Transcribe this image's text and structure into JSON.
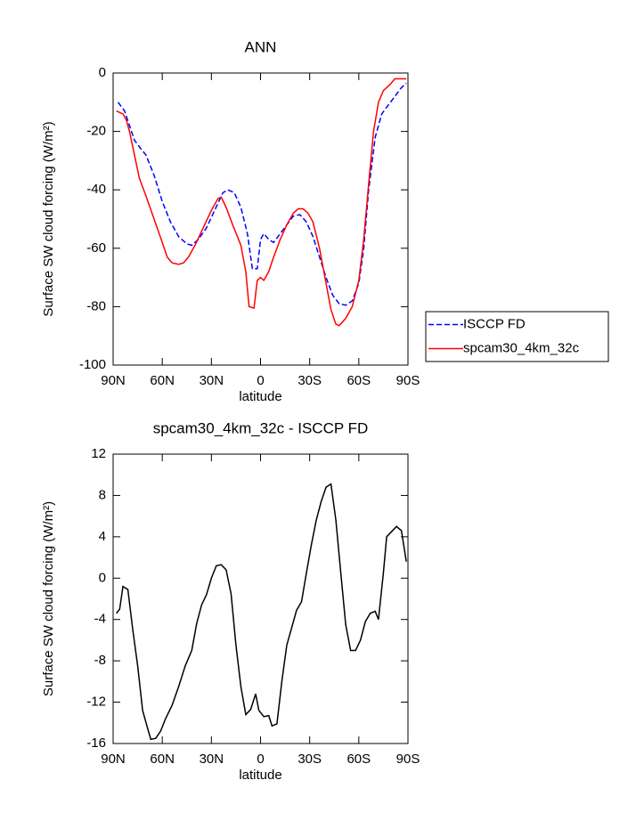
{
  "chart_data": [
    {
      "type": "line",
      "title": "ANN",
      "xlabel": "latitude",
      "ylabel": "Surface SW cloud forcing (W/m²)",
      "xlim": [
        90,
        -90
      ],
      "xticks": [
        {
          "value": 90,
          "label": "90N"
        },
        {
          "value": 60,
          "label": "60N"
        },
        {
          "value": 30,
          "label": "30N"
        },
        0,
        {
          "value": -30,
          "label": "30S"
        },
        {
          "value": -60,
          "label": "60S"
        },
        {
          "value": -90,
          "label": "90S"
        }
      ],
      "ylim": [
        -100,
        0
      ],
      "yticks": [
        0,
        -20,
        -40,
        -60,
        -80,
        -100
      ],
      "legend": "outside right",
      "series": [
        {
          "name": "ISCCP FD",
          "color": "#0000ff",
          "dash": true,
          "x": [
            87,
            83,
            80,
            77,
            73,
            70,
            65,
            60,
            55,
            50,
            45,
            42,
            38,
            33,
            28,
            23,
            20,
            16,
            12,
            8,
            5,
            2,
            0,
            -2,
            -5,
            -8,
            -12,
            -16,
            -20,
            -24,
            -28,
            -32,
            -36,
            -40,
            -44,
            -48,
            -52,
            -56,
            -60,
            -63,
            -66,
            -70,
            -74,
            -78,
            -82,
            -86,
            -89
          ],
          "values": [
            -10,
            -13,
            -18,
            -23,
            -26,
            -28,
            -35,
            -44,
            -51,
            -56,
            -58.5,
            -59,
            -57,
            -53,
            -47,
            -41,
            -40,
            -41,
            -46,
            -55,
            -67,
            -67,
            -57,
            -55,
            -57,
            -58,
            -55,
            -52,
            -49,
            -48.5,
            -51,
            -56,
            -63,
            -70,
            -76,
            -79,
            -79.5,
            -78,
            -72,
            -60,
            -40,
            -22,
            -14,
            -11,
            -8,
            -5,
            -3.5
          ]
        },
        {
          "name": "spcam30_4km_32c",
          "color": "#ff0000",
          "dash": false,
          "x": [
            88,
            84,
            82,
            80,
            77,
            74,
            70,
            65,
            60,
            57,
            54,
            50,
            47,
            44,
            40,
            35,
            30,
            26,
            24,
            21,
            17,
            12,
            9,
            7,
            4,
            2,
            0,
            -2,
            -5,
            -8,
            -12,
            -16,
            -20,
            -23,
            -26,
            -29,
            -32,
            -36,
            -40,
            -43,
            -46,
            -48,
            -52,
            -56,
            -60,
            -63,
            -66,
            -69,
            -72,
            -75,
            -79,
            -82,
            -89
          ],
          "values": [
            -13,
            -14,
            -16,
            -20,
            -28,
            -36,
            -42,
            -50,
            -58,
            -63,
            -65,
            -65.5,
            -65,
            -63,
            -59,
            -53,
            -47,
            -43,
            -42.5,
            -46,
            -52,
            -59,
            -68,
            -80,
            -80.5,
            -71,
            -70,
            -71,
            -68,
            -63,
            -57,
            -52,
            -48,
            -46.5,
            -46.5,
            -48,
            -51,
            -60,
            -72,
            -81,
            -86,
            -86.5,
            -84,
            -80,
            -71,
            -57,
            -38,
            -20,
            -10,
            -6,
            -4,
            -2,
            -2
          ]
        }
      ]
    },
    {
      "type": "line",
      "title": "spcam30_4km_32c - ISCCP FD",
      "xlabel": "latitude",
      "ylabel": "Surface SW cloud forcing (W/m²)",
      "xlim": [
        90,
        -90
      ],
      "xticks": [
        {
          "value": 90,
          "label": "90N"
        },
        {
          "value": 60,
          "label": "60N"
        },
        {
          "value": 30,
          "label": "30N"
        },
        0,
        {
          "value": -30,
          "label": "30S"
        },
        {
          "value": -60,
          "label": "60S"
        },
        {
          "value": -90,
          "label": "90S"
        }
      ],
      "ylim": [
        -16,
        12
      ],
      "yticks": [
        12,
        8,
        4,
        0,
        -4,
        -8,
        -12,
        -16
      ],
      "series": [
        {
          "color": "#000000",
          "dash": false,
          "x": [
            88,
            86,
            84,
            81,
            78,
            75,
            72,
            69,
            67,
            64,
            61,
            58,
            54,
            50,
            46,
            42,
            39,
            36,
            33,
            30,
            27,
            24,
            21,
            18,
            15,
            12,
            9,
            6,
            3,
            1,
            -2,
            -5,
            -7,
            -10,
            -13,
            -16,
            -19,
            -22,
            -25,
            -28,
            -31,
            -34,
            -37,
            -40,
            -43,
            -46,
            -49,
            -52,
            -55,
            -58,
            -61,
            -64,
            -67,
            -70,
            -72,
            -75,
            -77,
            -80,
            -83,
            -86,
            -88,
            -89
          ],
          "values": [
            -3.4,
            -3.0,
            -0.8,
            -1.1,
            -5,
            -8.5,
            -12.8,
            -14.5,
            -15.6,
            -15.5,
            -14.8,
            -13.6,
            -12.3,
            -10.5,
            -8.5,
            -7,
            -4.4,
            -2.6,
            -1.6,
            0,
            1.2,
            1.3,
            0.8,
            -1.5,
            -6.5,
            -10.5,
            -13.2,
            -12.7,
            -11.2,
            -12.8,
            -13.4,
            -13.3,
            -14.3,
            -14.1,
            -10,
            -6.5,
            -4.8,
            -3.1,
            -2.3,
            0.5,
            3.2,
            5.6,
            7.4,
            8.8,
            9.1,
            5.6,
            0.5,
            -4.5,
            -7,
            -7,
            -6,
            -4.2,
            -3.4,
            -3.2,
            -4,
            0.5,
            4,
            4.5,
            5,
            4.6,
            2.6,
            1.6
          ]
        }
      ]
    }
  ]
}
